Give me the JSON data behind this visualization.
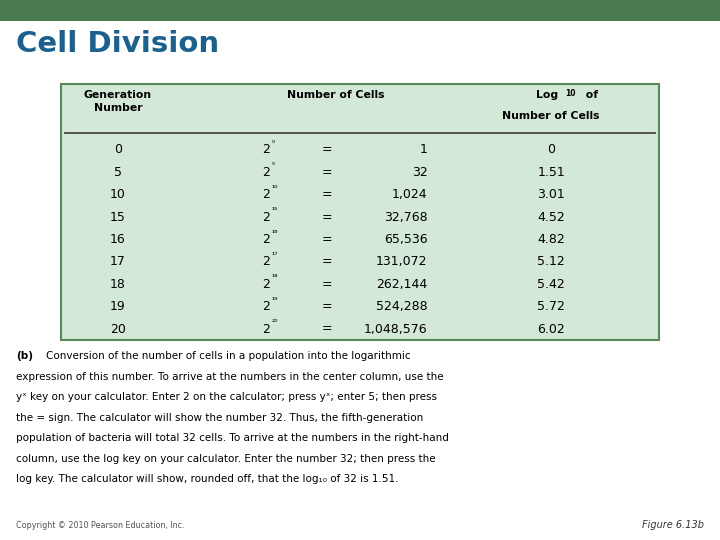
{
  "title": "Cell Division",
  "title_color": "#1a6090",
  "background_color": "#ffffff",
  "table_bg_color": "#d4e8d8",
  "table_border_color": "#5a8a5a",
  "top_bar_color": "#4a7a50",
  "header_text_color": "#000000",
  "data_text_color": "#000000",
  "rows": [
    [
      "0",
      "0",
      "=",
      "1",
      "0"
    ],
    [
      "5",
      "5",
      "=",
      "32",
      "1.51"
    ],
    [
      "10",
      "10",
      "=",
      "1,024",
      "3.01"
    ],
    [
      "15",
      "15",
      "=",
      "32,768",
      "4.52"
    ],
    [
      "16",
      "16",
      "=",
      "65,536",
      "4.82"
    ],
    [
      "17",
      "17",
      "=",
      "131,072",
      "5.12"
    ],
    [
      "18",
      "18",
      "=",
      "262,144",
      "5.42"
    ],
    [
      "19",
      "19",
      "=",
      "524,288",
      "5.72"
    ],
    [
      "20",
      "20",
      "=",
      "1,048,576",
      "6.02"
    ]
  ],
  "eq_signs": [
    "=",
    "=",
    "=",
    "=",
    "=",
    "=",
    "=",
    "=",
    "="
  ],
  "caption_bold": "(b)",
  "caption_lines": [
    "Conversion of the number of cells in a population into the logarithmic",
    "expression of this number. To arrive at the numbers in the center column, use the",
    "yˣ key on your calculator. Enter 2 on the calculator; press yˣ; enter 5; then press",
    "the = sign. The calculator will show the number 32. Thus, the fifth-generation",
    "population of bacteria will total 32 cells. To arrive at the numbers in the right-hand",
    "column, use the log key on your calculator. Enter the number 32; then press the",
    "log key. The calculator will show, rounded off, that the log₁₀ of 32 is 1.51."
  ],
  "copyright_text": "Copyright © 2010 Pearson Education, Inc.",
  "figure_text": "Figure 6.13b"
}
